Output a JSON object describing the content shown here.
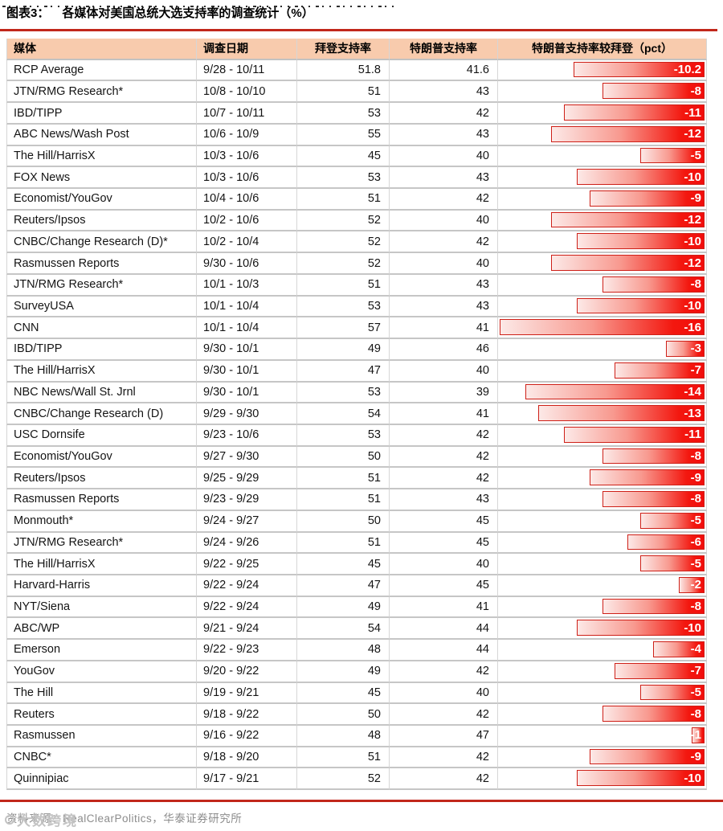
{
  "title": {
    "figure_label": "图表3：",
    "text": "各媒体对美国总统大选支持率的调查统计（%）"
  },
  "footer": {
    "source": "资料来源：RealClearPolitics，华泰证券研究所",
    "watermark": "大数跨境"
  },
  "colors": {
    "accent_rule": "#C1271B",
    "header_bg": "#F8CBAD",
    "bar_red": "#F20D0C",
    "bar_border": "#CE2018",
    "grid": "#C6C6C6"
  },
  "chart_data": {
    "type": "table",
    "title": "各媒体对美国总统大选支持率的调查统计（%）",
    "columns": [
      "媒体",
      "调查日期",
      "拜登支持率",
      "特朗普支持率",
      "特朗普支持率较拜登（pct）"
    ],
    "bar_axis": {
      "max_abs": 16,
      "range": [
        -16,
        0
      ],
      "bar_color": "#F20D0C"
    },
    "rows": [
      {
        "media": "RCP Average",
        "date": "9/28 - 10/11",
        "biden": "51.8",
        "trump": "41.6",
        "diff": -10.2,
        "diff_label": "-10.2"
      },
      {
        "media": "JTN/RMG Research*",
        "date": "10/8 - 10/10",
        "biden": "51",
        "trump": "43",
        "diff": -8,
        "diff_label": "-8"
      },
      {
        "media": "IBD/TIPP",
        "date": "10/7 - 10/11",
        "biden": "53",
        "trump": "42",
        "diff": -11,
        "diff_label": "-11"
      },
      {
        "media": "ABC News/Wash Post",
        "date": "10/6 - 10/9",
        "biden": "55",
        "trump": "43",
        "diff": -12,
        "diff_label": "-12"
      },
      {
        "media": "The Hill/HarrisX",
        "date": "10/3 - 10/6",
        "biden": "45",
        "trump": "40",
        "diff": -5,
        "diff_label": "-5"
      },
      {
        "media": "FOX News",
        "date": "10/3 - 10/6",
        "biden": "53",
        "trump": "43",
        "diff": -10,
        "diff_label": "-10"
      },
      {
        "media": "Economist/YouGov",
        "date": "10/4 - 10/6",
        "biden": "51",
        "trump": "42",
        "diff": -9,
        "diff_label": "-9"
      },
      {
        "media": "Reuters/Ipsos",
        "date": "10/2 - 10/6",
        "biden": "52",
        "trump": "40",
        "diff": -12,
        "diff_label": "-12"
      },
      {
        "media": "CNBC/Change Research (D)*",
        "date": "10/2 - 10/4",
        "biden": "52",
        "trump": "42",
        "diff": -10,
        "diff_label": "-10"
      },
      {
        "media": "Rasmussen Reports",
        "date": "9/30 - 10/6",
        "biden": "52",
        "trump": "40",
        "diff": -12,
        "diff_label": "-12"
      },
      {
        "media": "JTN/RMG Research*",
        "date": "10/1 - 10/3",
        "biden": "51",
        "trump": "43",
        "diff": -8,
        "diff_label": "-8"
      },
      {
        "media": "SurveyUSA",
        "date": "10/1 - 10/4",
        "biden": "53",
        "trump": "43",
        "diff": -10,
        "diff_label": "-10"
      },
      {
        "media": "CNN",
        "date": "10/1 - 10/4",
        "biden": "57",
        "trump": "41",
        "diff": -16,
        "diff_label": "-16"
      },
      {
        "media": "IBD/TIPP",
        "date": "9/30 - 10/1",
        "biden": "49",
        "trump": "46",
        "diff": -3,
        "diff_label": "-3"
      },
      {
        "media": "The Hill/HarrisX",
        "date": "9/30 - 10/1",
        "biden": "47",
        "trump": "40",
        "diff": -7,
        "diff_label": "-7"
      },
      {
        "media": "NBC News/Wall St. Jrnl",
        "date": "9/30 - 10/1",
        "biden": "53",
        "trump": "39",
        "diff": -14,
        "diff_label": "-14"
      },
      {
        "media": "CNBC/Change Research (D)",
        "date": "9/29 - 9/30",
        "biden": "54",
        "trump": "41",
        "diff": -13,
        "diff_label": "-13"
      },
      {
        "media": "USC Dornsife",
        "date": "9/23 - 10/6",
        "biden": "53",
        "trump": "42",
        "diff": -11,
        "diff_label": "-11"
      },
      {
        "media": "Economist/YouGov",
        "date": "9/27 - 9/30",
        "biden": "50",
        "trump": "42",
        "diff": -8,
        "diff_label": "-8"
      },
      {
        "media": "Reuters/Ipsos",
        "date": "9/25 - 9/29",
        "biden": "51",
        "trump": "42",
        "diff": -9,
        "diff_label": "-9"
      },
      {
        "media": "Rasmussen Reports",
        "date": "9/23 - 9/29",
        "biden": "51",
        "trump": "43",
        "diff": -8,
        "diff_label": "-8"
      },
      {
        "media": "Monmouth*",
        "date": "9/24 - 9/27",
        "biden": "50",
        "trump": "45",
        "diff": -5,
        "diff_label": "-5"
      },
      {
        "media": "JTN/RMG Research*",
        "date": "9/24 - 9/26",
        "biden": "51",
        "trump": "45",
        "diff": -6,
        "diff_label": "-6"
      },
      {
        "media": "The Hill/HarrisX",
        "date": "9/22 - 9/25",
        "biden": "45",
        "trump": "40",
        "diff": -5,
        "diff_label": "-5"
      },
      {
        "media": "Harvard-Harris",
        "date": "9/22 - 9/24",
        "biden": "47",
        "trump": "45",
        "diff": -2,
        "diff_label": "-2"
      },
      {
        "media": "NYT/Siena",
        "date": "9/22 - 9/24",
        "biden": "49",
        "trump": "41",
        "diff": -8,
        "diff_label": "-8"
      },
      {
        "media": "ABC/WP",
        "date": "9/21 - 9/24",
        "biden": "54",
        "trump": "44",
        "diff": -10,
        "diff_label": "-10"
      },
      {
        "media": "Emerson",
        "date": "9/22 - 9/23",
        "biden": "48",
        "trump": "44",
        "diff": -4,
        "diff_label": "-4"
      },
      {
        "media": "YouGov",
        "date": "9/20 - 9/22",
        "biden": "49",
        "trump": "42",
        "diff": -7,
        "diff_label": "-7"
      },
      {
        "media": "The Hill",
        "date": "9/19 - 9/21",
        "biden": "45",
        "trump": "40",
        "diff": -5,
        "diff_label": "-5"
      },
      {
        "media": "Reuters",
        "date": "9/18 - 9/22",
        "biden": "50",
        "trump": "42",
        "diff": -8,
        "diff_label": "-8"
      },
      {
        "media": "Rasmussen",
        "date": "9/16 - 9/22",
        "biden": "48",
        "trump": "47",
        "diff": -1,
        "diff_label": "-1"
      },
      {
        "media": "CNBC*",
        "date": "9/18 - 9/20",
        "biden": "51",
        "trump": "42",
        "diff": -9,
        "diff_label": "-9"
      },
      {
        "media": "Quinnipiac",
        "date": "9/17 - 9/21",
        "biden": "52",
        "trump": "42",
        "diff": -10,
        "diff_label": "-10"
      }
    ]
  }
}
